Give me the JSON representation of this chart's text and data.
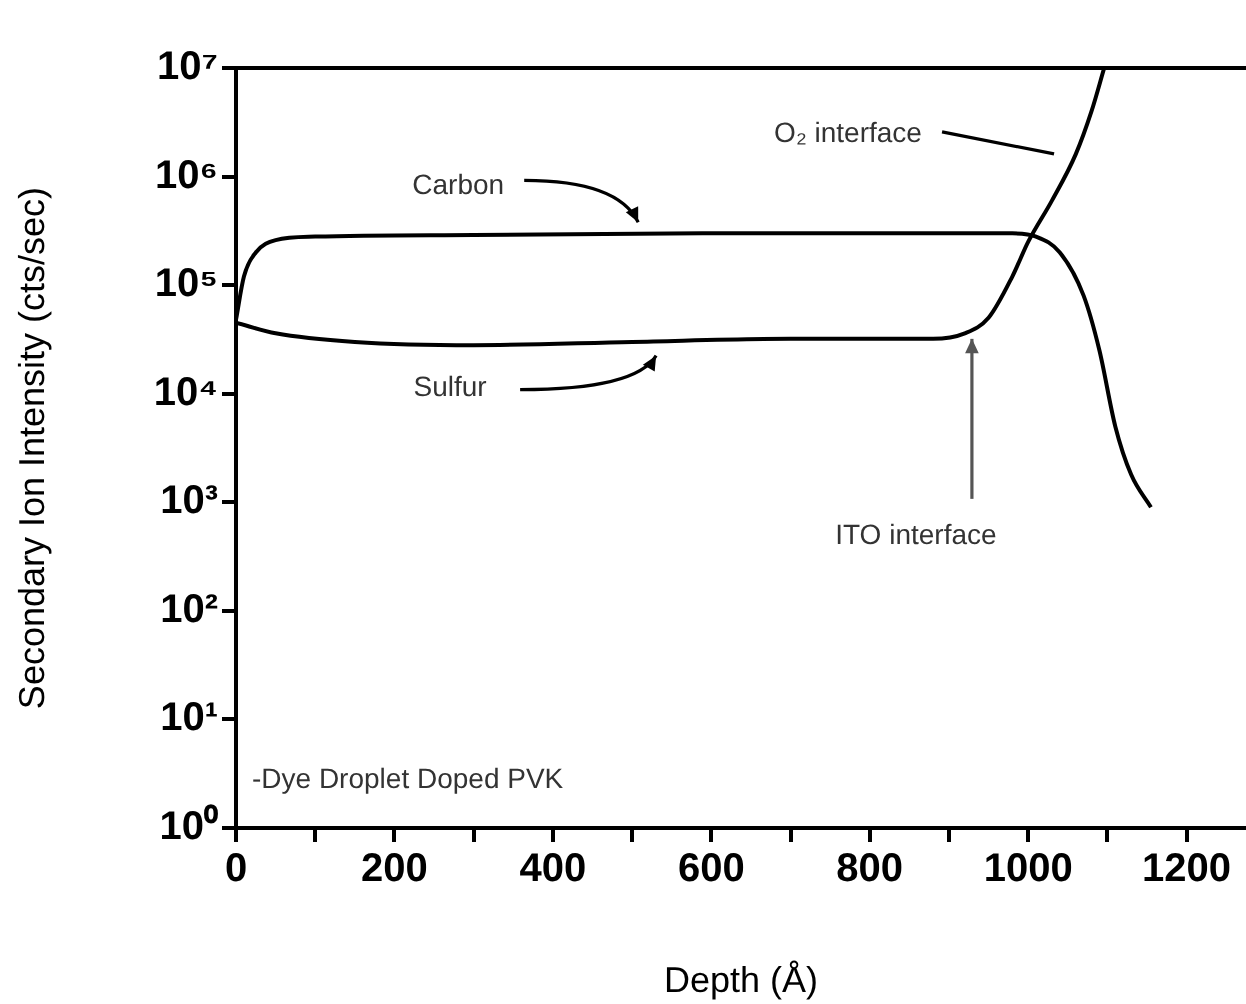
{
  "chart_data": {
    "type": "line",
    "xlabel": "Depth (Å)",
    "ylabel": "Secondary Ion Intensity (cts/sec)",
    "log": "y",
    "grid": false,
    "legend": false,
    "marker": "none",
    "line_style": "solid",
    "xlim": [
      0,
      1275
    ],
    "xticks": [
      0,
      {
        "value": 100,
        "label": null
      },
      200,
      {
        "value": 300,
        "label": null
      },
      400,
      {
        "value": 500,
        "label": null
      },
      600,
      {
        "value": 700,
        "label": null
      },
      800,
      {
        "value": 900,
        "label": null
      },
      1000,
      {
        "value": 1100,
        "label": null
      },
      1200
    ],
    "ylim": [
      1,
      10000000
    ],
    "yticks": [
      {
        "value": 1,
        "label": "10⁰"
      },
      {
        "value": 10,
        "label": "10¹"
      },
      {
        "value": 100,
        "label": "10²"
      },
      {
        "value": 1000,
        "label": "10³"
      },
      {
        "value": 10000,
        "label": "10⁴"
      },
      {
        "value": 100000,
        "label": "10⁵"
      },
      {
        "value": 1000000,
        "label": "10⁶"
      },
      {
        "value": 10000000,
        "label": "10⁷"
      }
    ],
    "series": [
      {
        "color": "#000000",
        "x": [
          0,
          10,
          25,
          50,
          100,
          300,
          600,
          900,
          980,
          1010,
          1040,
          1070,
          1090,
          1110,
          1130,
          1155
        ],
        "values": [
          48000,
          120000,
          200000,
          260000,
          280000,
          290000,
          300000,
          300000,
          300000,
          280000,
          200000,
          80000,
          25000,
          5000,
          1800,
          900
        ]
      },
      {
        "color": "#000000",
        "x": [
          0,
          50,
          150,
          300,
          500,
          700,
          880,
          920,
          950,
          980,
          1000,
          1030,
          1060,
          1080,
          1096
        ],
        "values": [
          45000,
          36000,
          30000,
          28000,
          30000,
          32000,
          32000,
          36000,
          50000,
          120000,
          250000,
          600000,
          1600000,
          4000000,
          10000000
        ]
      }
    ],
    "annotations": [
      "Carbon",
      "Sulfur",
      "O₂ interface",
      {
        "text": "ITO interface",
        "x": 929,
        "y": 32000
      },
      "-Dye Droplet Doped PVK"
    ]
  }
}
